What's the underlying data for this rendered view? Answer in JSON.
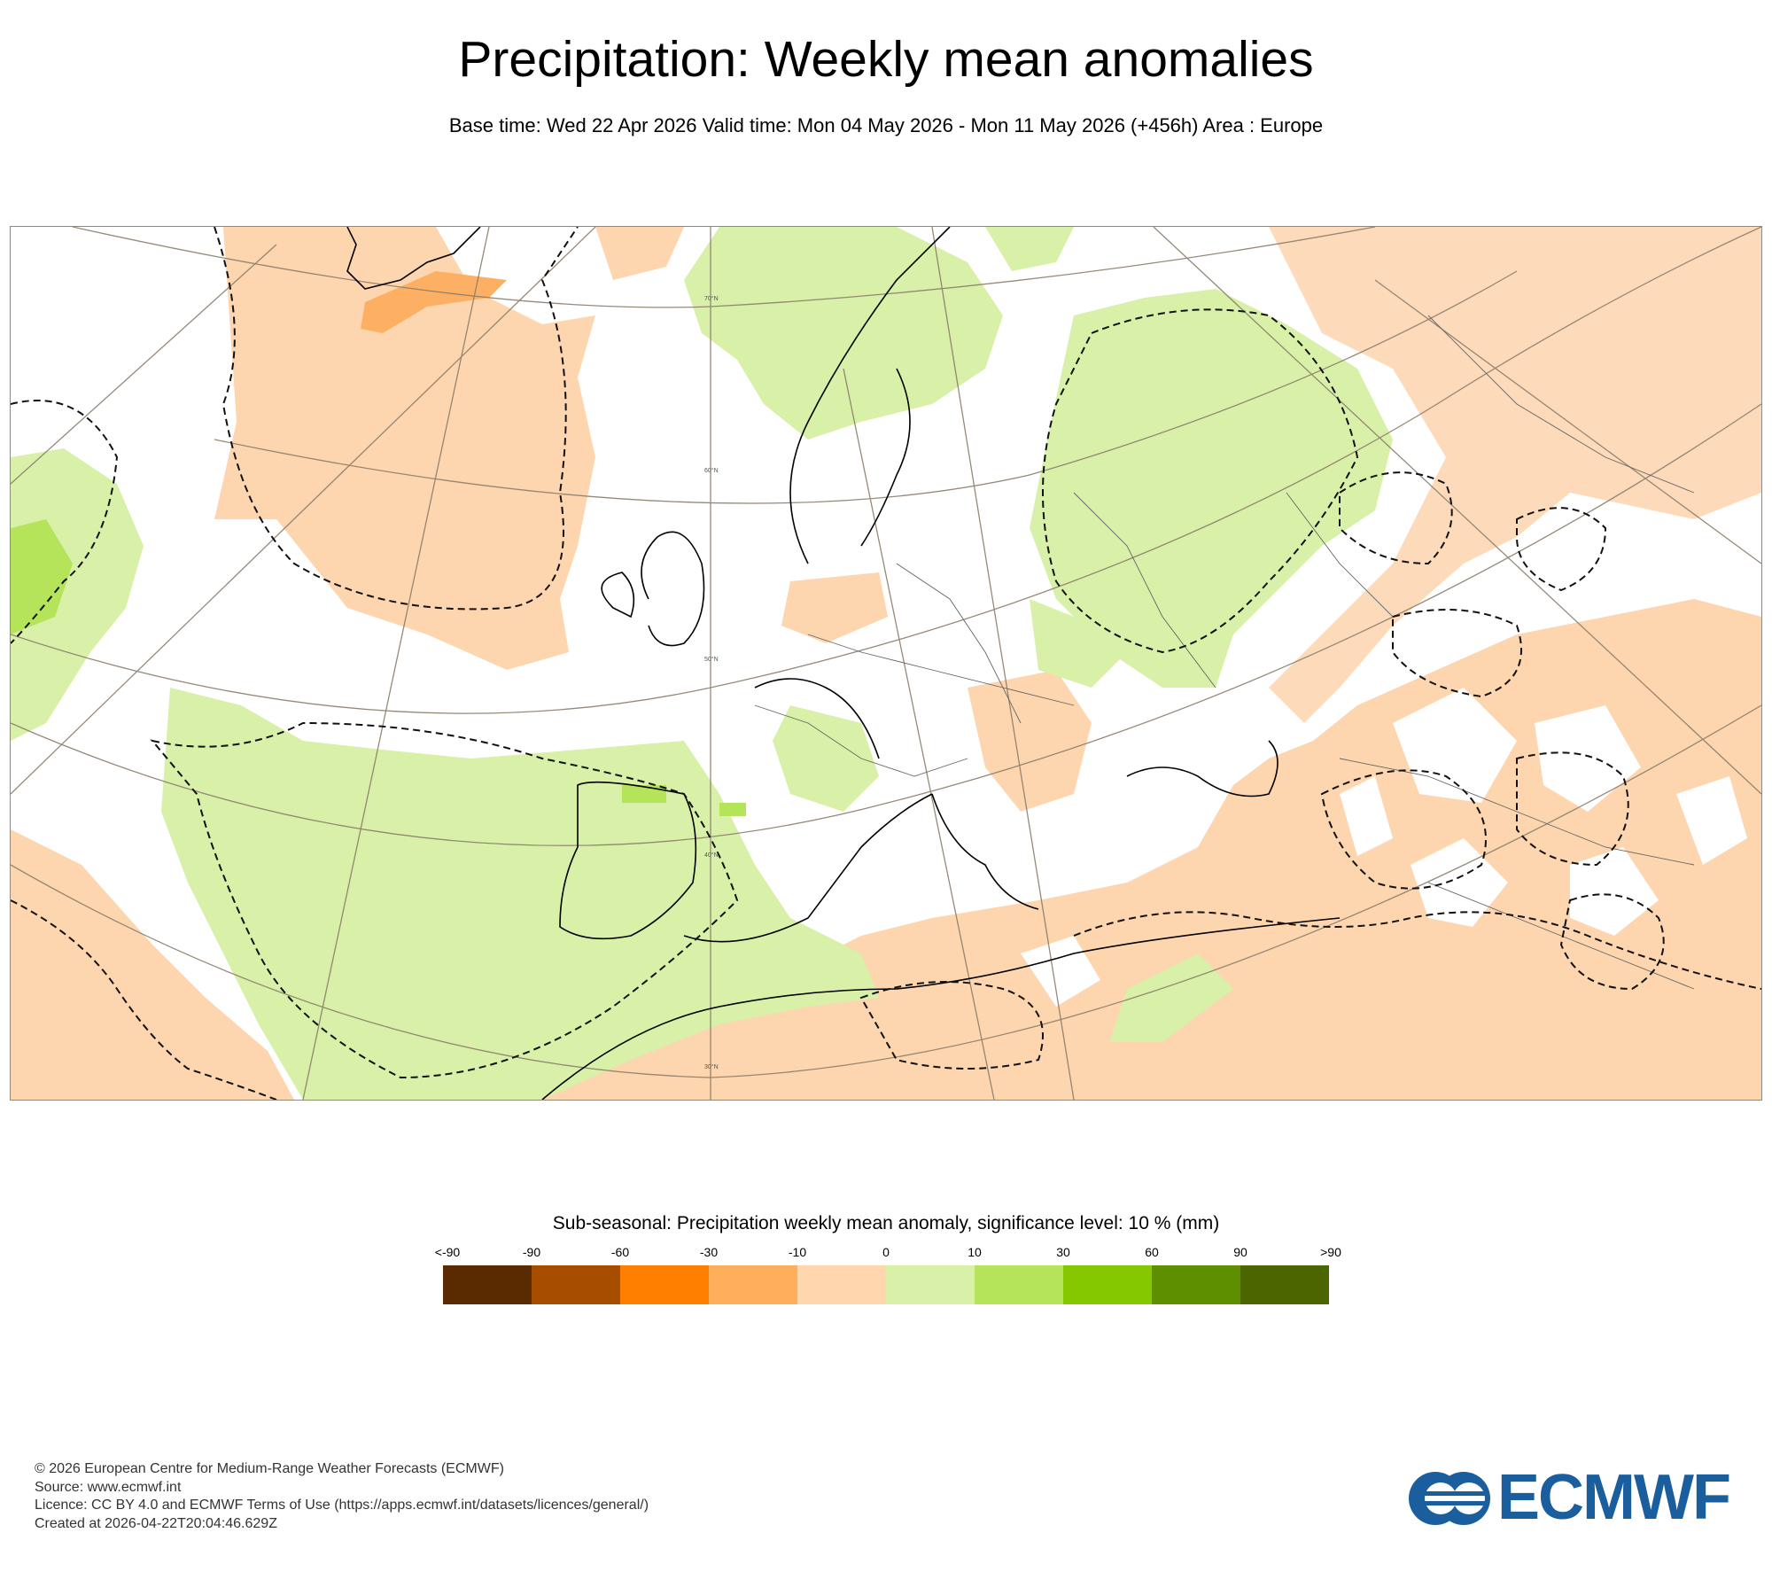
{
  "header": {
    "title": "Precipitation: Weekly mean anomalies",
    "subtitle": "Base time: Wed 22 Apr 2026 Valid time: Mon 04 May 2026 - Mon 11 May 2026 (+456h) Area : Europe"
  },
  "map": {
    "latitude_labels": [
      "70°N",
      "60°N",
      "50°N",
      "40°N",
      "30°N"
    ],
    "colors": {
      "background": "#ffffff",
      "dry_light": "#fdd5ae",
      "dry_medium": "#fdb063",
      "wet_light": "#d8f0a8",
      "wet_medium": "#b5e35a",
      "coastline": "#000000",
      "graticule": "#8b7d6b"
    }
  },
  "legend": {
    "title": "Sub-seasonal: Precipitation weekly mean anomaly, significance level: 10 % (mm)",
    "ticks": [
      "<-90",
      "-90",
      "-60",
      "-30",
      "-10",
      "0",
      "10",
      "30",
      "60",
      "90",
      ">90"
    ],
    "colors": [
      "#5a2a00",
      "#a64d00",
      "#ff7f00",
      "#ffae5c",
      "#ffd6ad",
      "#d8f0a8",
      "#b5e35a",
      "#86c800",
      "#5e8f00",
      "#4b6500"
    ]
  },
  "footer": {
    "lines": [
      "© 2026 European Centre for Medium-Range Weather Forecasts (ECMWF)",
      "Source: www.ecmwf.int",
      "Licence: CC BY 4.0 and ECMWF Terms of Use (https://apps.ecmwf.int/datasets/licences/general/)",
      "Created at 2026-04-22T20:04:46.629Z"
    ]
  },
  "logo": {
    "text": "ECMWF",
    "color": "#1a5e9e"
  }
}
